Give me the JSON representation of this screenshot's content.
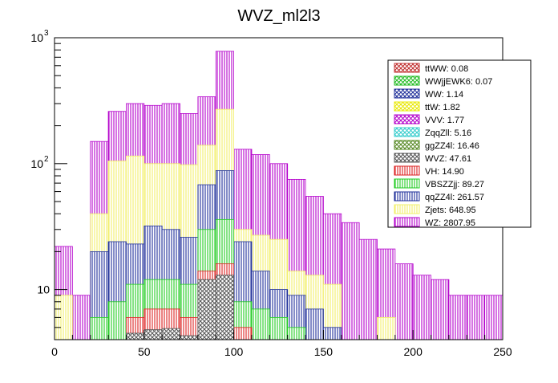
{
  "chart_data": {
    "type": "bar",
    "stacked": true,
    "title": "WVZ_ml2l3",
    "xlabel": "",
    "ylabel": "",
    "xlim": [
      0,
      250
    ],
    "ylim": [
      4,
      1000
    ],
    "log_y": true,
    "grid": false,
    "legend_position": "top-right",
    "x_ticks": [
      0,
      50,
      100,
      150,
      200,
      250
    ],
    "bin_width": 10,
    "bin_edges": [
      0,
      10,
      20,
      30,
      40,
      50,
      60,
      70,
      80,
      90,
      100,
      110,
      120,
      130,
      140,
      150,
      160,
      170,
      180,
      190,
      200,
      210,
      220,
      230,
      240,
      250
    ],
    "stack_order": [
      "WZ",
      "Zjets",
      "qqZZ4l",
      "VBSZZjj",
      "VH",
      "WVZ",
      "ggZZ4l",
      "ZqqZll",
      "VVV",
      "ttW",
      "WW",
      "WWjjEWK6",
      "ttWW"
    ],
    "cumulative_series": [
      {
        "name": "WZ",
        "color": "#b400cc",
        "hatch": "vertical",
        "values": [
          22,
          9,
          150,
          260,
          300,
          290,
          300,
          250,
          340,
          780,
          130,
          118,
          100,
          75,
          55,
          40,
          34,
          25,
          21,
          16,
          13,
          12,
          9,
          9,
          9
        ]
      },
      {
        "name": "Zjets",
        "color": "#f2f06a",
        "hatch": "vertical",
        "values": [
          9,
          4,
          40,
          105,
          115,
          100,
          100,
          98,
          140,
          270,
          30,
          27,
          25,
          14,
          13,
          11,
          4,
          4,
          6,
          4,
          4,
          4,
          4,
          4,
          4
        ]
      },
      {
        "name": "qqZZ4l",
        "color": "#1f2f9a",
        "hatch": "vertical",
        "values": [
          4,
          4,
          20,
          24,
          23,
          32,
          30,
          26,
          68,
          88,
          24,
          14,
          10,
          9,
          7,
          5,
          4,
          4,
          4,
          4,
          4,
          4,
          4,
          4,
          4
        ]
      },
      {
        "name": "VBSZZjj",
        "color": "#22cc22",
        "hatch": "vertical",
        "values": [
          0,
          0,
          6,
          8,
          11,
          12,
          12,
          11,
          30,
          36,
          8,
          7,
          6,
          5,
          4,
          4,
          4,
          4,
          4,
          4,
          4,
          4,
          4,
          4,
          4
        ]
      },
      {
        "name": "VH",
        "color": "#dd2222",
        "hatch": "vertical",
        "values": [
          0,
          0,
          0,
          0,
          6,
          7,
          7,
          6,
          14,
          16,
          5,
          4,
          4,
          4,
          4,
          4,
          4,
          4,
          4,
          4,
          4,
          4,
          4,
          4,
          4
        ]
      },
      {
        "name": "WVZ",
        "color": "#555555",
        "hatch": "cross",
        "values": [
          0,
          0,
          0,
          0,
          4.5,
          4.8,
          4.9,
          4.3,
          12,
          13,
          4,
          4,
          4,
          4,
          4,
          4,
          4,
          4,
          4,
          4,
          4,
          4,
          4,
          4,
          4
        ]
      }
    ],
    "legend": [
      {
        "label": "ttWW: 0.08",
        "color": "#c02c2c",
        "hatch": "cross"
      },
      {
        "label": "WWjjEWK6: 0.07",
        "color": "#22bb22",
        "hatch": "cross"
      },
      {
        "label": "WW: 1.14",
        "color": "#1f2f9a",
        "hatch": "cross"
      },
      {
        "label": "ttW: 1.82",
        "color": "#e8e800",
        "hatch": "cross"
      },
      {
        "label": "VVV: 1.77",
        "color": "#b400cc",
        "hatch": "cross"
      },
      {
        "label": "ZqqZll: 5.16",
        "color": "#33cccc",
        "hatch": "cross"
      },
      {
        "label": "ggZZ4l: 16.46",
        "color": "#558822",
        "hatch": "cross"
      },
      {
        "label": "WVZ: 47.61",
        "color": "#555555",
        "hatch": "cross"
      },
      {
        "label": "VH: 14.90",
        "color": "#dd2222",
        "hatch": "vertical"
      },
      {
        "label": "VBSZZjj: 89.27",
        "color": "#22cc22",
        "hatch": "vertical"
      },
      {
        "label": "qqZZ4l: 261.57",
        "color": "#1f2f9a",
        "hatch": "vertical"
      },
      {
        "label": "Zjets: 648.95",
        "color": "#f2f06a",
        "hatch": "vertical"
      },
      {
        "label": "WZ: 2807.95",
        "color": "#b400cc",
        "hatch": "vertical"
      }
    ]
  }
}
